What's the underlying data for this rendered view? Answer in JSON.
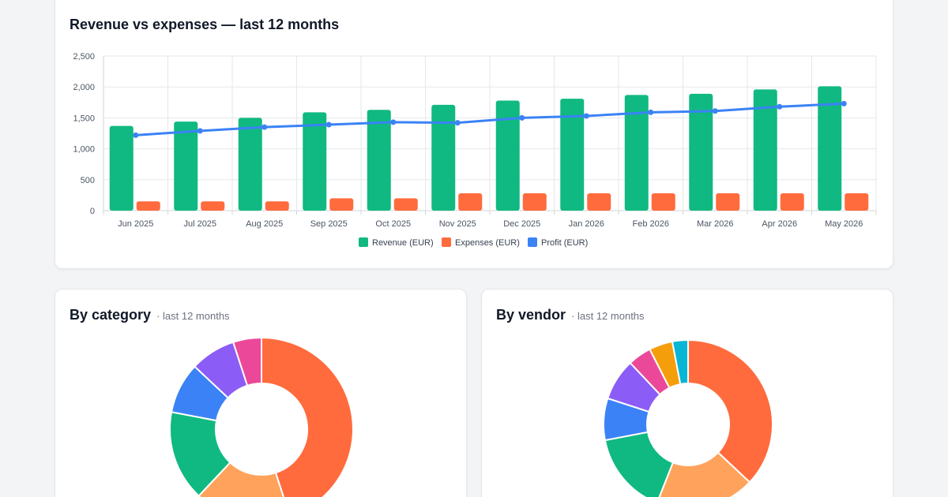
{
  "main_card": {
    "title": "Revenue vs expenses — last 12 months"
  },
  "category_card": {
    "title": "By category",
    "subtitle": "· last 12 months"
  },
  "vendor_card": {
    "title": "By vendor",
    "subtitle": "· last 12 months"
  },
  "chart_data": [
    {
      "type": "bar",
      "title": "Revenue vs expenses — last 12 months",
      "categories": [
        "Jun 2025",
        "Jul 2025",
        "Aug 2025",
        "Sep 2025",
        "Oct 2025",
        "Nov 2025",
        "Dec 2025",
        "Jan 2026",
        "Feb 2026",
        "Mar 2026",
        "Apr 2026",
        "May 2026"
      ],
      "ylim": [
        0,
        2500
      ],
      "yticks": [
        0,
        500,
        1000,
        1500,
        2000,
        2500
      ],
      "ytick_labels": [
        "0",
        "500",
        "1,000",
        "1,500",
        "2,000",
        "2,500"
      ],
      "grid": true,
      "legend_position": "bottom",
      "series": [
        {
          "name": "Revenue (EUR)",
          "kind": "bar",
          "color": "#10b981",
          "values": [
            1370,
            1440,
            1500,
            1590,
            1630,
            1710,
            1780,
            1810,
            1870,
            1890,
            1960,
            2010
          ]
        },
        {
          "name": "Expenses (EUR)",
          "kind": "bar",
          "color": "#ff6b3d",
          "values": [
            150,
            150,
            150,
            200,
            200,
            280,
            280,
            280,
            280,
            280,
            280,
            280
          ]
        },
        {
          "name": "Profit (EUR)",
          "kind": "line",
          "color": "#3b82f6",
          "values": [
            1220,
            1290,
            1350,
            1390,
            1430,
            1420,
            1500,
            1530,
            1590,
            1610,
            1680,
            1730
          ]
        }
      ]
    },
    {
      "type": "pie",
      "title": "By category",
      "subtitle": "· last 12 months",
      "donut": true,
      "slices": [
        {
          "value": 45,
          "color": "#ff6b3d"
        },
        {
          "value": 17,
          "color": "#ffa35c"
        },
        {
          "value": 16,
          "color": "#10b981"
        },
        {
          "value": 9,
          "color": "#3b82f6"
        },
        {
          "value": 8,
          "color": "#8b5cf6"
        },
        {
          "value": 5,
          "color": "#ec4899"
        }
      ]
    },
    {
      "type": "pie",
      "title": "By vendor",
      "subtitle": "· last 12 months",
      "donut": true,
      "slices": [
        {
          "value": 37,
          "color": "#ff6b3d"
        },
        {
          "value": 19,
          "color": "#ffa35c"
        },
        {
          "value": 16,
          "color": "#10b981"
        },
        {
          "value": 8,
          "color": "#3b82f6"
        },
        {
          "value": 8,
          "color": "#8b5cf6"
        },
        {
          "value": 4.5,
          "color": "#ec4899"
        },
        {
          "value": 4.5,
          "color": "#f59e0b"
        },
        {
          "value": 3,
          "color": "#06b6d4"
        }
      ]
    }
  ]
}
